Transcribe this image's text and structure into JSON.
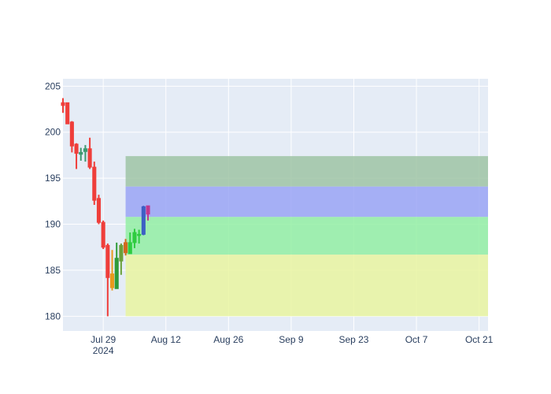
{
  "chart_data": {
    "type": "candlestick",
    "title": "",
    "xlabel": "",
    "ylabel": "",
    "x_ticks": [
      {
        "date": "2024-07-29",
        "label": "Jul 29",
        "sublabel": "2024"
      },
      {
        "date": "2024-08-12",
        "label": "Aug 12",
        "sublabel": ""
      },
      {
        "date": "2024-08-26",
        "label": "Aug 26",
        "sublabel": ""
      },
      {
        "date": "2024-09-09",
        "label": "Sep 9",
        "sublabel": ""
      },
      {
        "date": "2024-09-23",
        "label": "Sep 23",
        "sublabel": ""
      },
      {
        "date": "2024-10-07",
        "label": "Oct 7",
        "sublabel": ""
      },
      {
        "date": "2024-10-21",
        "label": "Oct 21",
        "sublabel": ""
      }
    ],
    "y_ticks": [
      180,
      185,
      190,
      195,
      200,
      205
    ],
    "xlim": [
      "2024-07-20",
      "2024-10-23"
    ],
    "ylim": [
      178.4,
      205.8
    ],
    "grid": true,
    "legend": "none",
    "colors": {
      "plot_bg": "#e5ecf6",
      "grid": "#ffffff",
      "increasing": "#3d9970",
      "decreasing": "#ef3e3a"
    },
    "bands": [
      {
        "x0": "2024-08-03",
        "x1": "2024-10-23",
        "y0": 180.0,
        "y1": 186.7,
        "color": "#e9f5a0"
      },
      {
        "x0": "2024-08-03",
        "x1": "2024-10-23",
        "y0": 186.7,
        "y1": 190.8,
        "color": "#93efa3"
      },
      {
        "x0": "2024-08-03",
        "x1": "2024-10-23",
        "y0": 190.8,
        "y1": 194.1,
        "color": "#9aa5f5"
      },
      {
        "x0": "2024-08-03",
        "x1": "2024-10-23",
        "y0": 194.1,
        "y1": 197.4,
        "color": "#9fc4a4"
      }
    ],
    "candles": [
      {
        "date": "2024-07-20",
        "open": 203.2,
        "high": 203.7,
        "low": 202.1,
        "close": 202.9
      },
      {
        "date": "2024-07-21",
        "open": 203.2,
        "high": 203.2,
        "low": 200.9,
        "close": 200.9
      },
      {
        "date": "2024-07-22",
        "open": 201.1,
        "high": 201.2,
        "low": 197.8,
        "close": 198.5
      },
      {
        "date": "2024-07-23",
        "open": 198.7,
        "high": 198.8,
        "low": 196.0,
        "close": 197.7
      },
      {
        "date": "2024-07-24",
        "open": 197.6,
        "high": 198.3,
        "low": 196.9,
        "close": 197.8
      },
      {
        "date": "2024-07-25",
        "open": 197.9,
        "high": 198.6,
        "low": 196.8,
        "close": 198.2
      },
      {
        "date": "2024-07-26",
        "open": 198.2,
        "high": 199.4,
        "low": 196.0,
        "close": 196.2
      },
      {
        "date": "2024-07-27",
        "open": 196.2,
        "high": 196.8,
        "low": 192.1,
        "close": 192.6
      },
      {
        "date": "2024-07-28",
        "open": 192.8,
        "high": 193.2,
        "low": 190.0,
        "close": 190.2
      },
      {
        "date": "2024-07-29",
        "open": 190.2,
        "high": 190.4,
        "low": 187.3,
        "close": 187.5
      },
      {
        "date": "2024-07-30",
        "open": 187.7,
        "high": 187.9,
        "low": 180.0,
        "close": 184.2,
        "color": "#ef3e3a"
      },
      {
        "date": "2024-07-31",
        "open": 184.6,
        "high": 187.2,
        "low": 182.8,
        "close": 183.1,
        "color": "#e89a1c"
      },
      {
        "date": "2024-08-01",
        "open": 183.0,
        "high": 188.0,
        "low": 183.0,
        "close": 186.3,
        "color": "#2e9b39"
      },
      {
        "date": "2024-08-02",
        "open": 186.0,
        "high": 187.9,
        "low": 184.5,
        "close": 187.7,
        "color": "#6aa13a"
      },
      {
        "date": "2024-08-03",
        "open": 188.0,
        "high": 188.4,
        "low": 186.6,
        "close": 186.9,
        "color": "#d2691e"
      },
      {
        "date": "2024-08-04",
        "open": 186.8,
        "high": 189.1,
        "low": 186.8,
        "close": 188.0,
        "color": "#2ecc40"
      },
      {
        "date": "2024-08-05",
        "open": 188.0,
        "high": 189.5,
        "low": 187.4,
        "close": 189.1,
        "color": "#2ecc40"
      },
      {
        "date": "2024-08-06",
        "open": 188.9,
        "high": 189.4,
        "low": 187.9,
        "close": 188.9,
        "color": "#2ecc40"
      },
      {
        "date": "2024-08-07",
        "open": 188.9,
        "high": 192.0,
        "low": 188.8,
        "close": 191.9,
        "color": "#3d5fc4"
      },
      {
        "date": "2024-08-08",
        "open": 192.0,
        "high": 192.0,
        "low": 190.4,
        "close": 191.1,
        "color": "#c0388f"
      }
    ]
  }
}
